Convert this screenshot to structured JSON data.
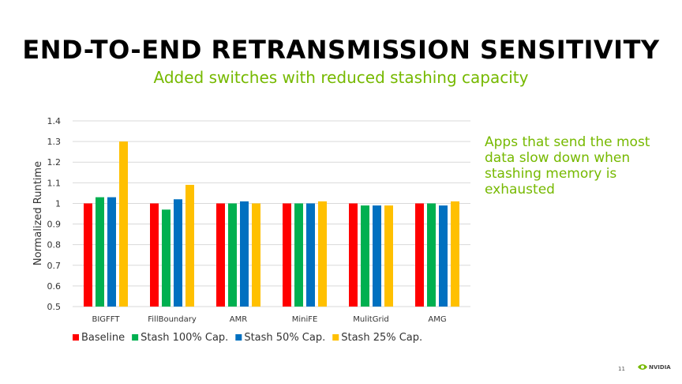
{
  "slide": {
    "title": "END-TO-END RETRANSMISSION SENSITIVITY",
    "subtitle": "Added switches with reduced stashing capacity",
    "callout": "Apps that send the most data slow down when stashing memory is exhausted",
    "page_number": "11",
    "logo_text": "NVIDIA"
  },
  "chart_data": {
    "type": "bar",
    "title": "",
    "xlabel": "",
    "ylabel": "Normalized Runtime",
    "ylim": [
      0.5,
      1.4
    ],
    "yticks": [
      "0.5",
      "0.6",
      "0.7",
      "0.8",
      "0.9",
      "1",
      "1.1",
      "1.2",
      "1.3",
      "1.4"
    ],
    "grid": true,
    "legend": "bottom",
    "categories": [
      "BIGFFT",
      "FillBoundary",
      "AMR",
      "MiniFE",
      "MulitGrid",
      "AMG"
    ],
    "series": [
      {
        "name": "Baseline",
        "color": "#ff0000",
        "values": [
          1.0,
          1.0,
          1.0,
          1.0,
          1.0,
          1.0
        ]
      },
      {
        "name": "Stash 100% Cap.",
        "color": "#00b050",
        "values": [
          1.03,
          0.97,
          1.0,
          1.0,
          0.99,
          1.0
        ]
      },
      {
        "name": "Stash 50% Cap.",
        "color": "#0070c0",
        "values": [
          1.03,
          1.02,
          1.01,
          1.0,
          0.99,
          0.99
        ]
      },
      {
        "name": "Stash 25% Cap.",
        "color": "#ffc000",
        "values": [
          1.3,
          1.09,
          1.0,
          1.01,
          0.99,
          1.01
        ]
      }
    ]
  }
}
